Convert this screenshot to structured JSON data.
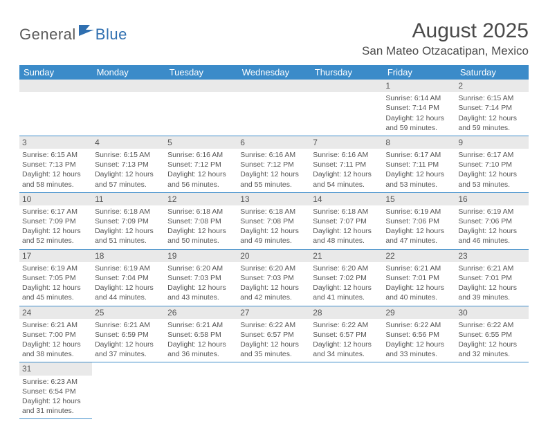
{
  "logo": {
    "part1": "General",
    "part2": "Blue"
  },
  "title": "August 2025",
  "location": "San Mateo Otzacatipan, Mexico",
  "colors": {
    "header_bg": "#3b8bc9",
    "header_text": "#ffffff",
    "daynum_bg": "#e9e9e9",
    "border": "#3b8bc9",
    "text": "#555555",
    "logo_gray": "#5a5a5a",
    "logo_blue": "#2f6fb0"
  },
  "weekdays": [
    "Sunday",
    "Monday",
    "Tuesday",
    "Wednesday",
    "Thursday",
    "Friday",
    "Saturday"
  ],
  "weeks": [
    [
      null,
      null,
      null,
      null,
      null,
      {
        "day": "1",
        "sunrise": "Sunrise: 6:14 AM",
        "sunset": "Sunset: 7:14 PM",
        "daylight1": "Daylight: 12 hours",
        "daylight2": "and 59 minutes."
      },
      {
        "day": "2",
        "sunrise": "Sunrise: 6:15 AM",
        "sunset": "Sunset: 7:14 PM",
        "daylight1": "Daylight: 12 hours",
        "daylight2": "and 59 minutes."
      }
    ],
    [
      {
        "day": "3",
        "sunrise": "Sunrise: 6:15 AM",
        "sunset": "Sunset: 7:13 PM",
        "daylight1": "Daylight: 12 hours",
        "daylight2": "and 58 minutes."
      },
      {
        "day": "4",
        "sunrise": "Sunrise: 6:15 AM",
        "sunset": "Sunset: 7:13 PM",
        "daylight1": "Daylight: 12 hours",
        "daylight2": "and 57 minutes."
      },
      {
        "day": "5",
        "sunrise": "Sunrise: 6:16 AM",
        "sunset": "Sunset: 7:12 PM",
        "daylight1": "Daylight: 12 hours",
        "daylight2": "and 56 minutes."
      },
      {
        "day": "6",
        "sunrise": "Sunrise: 6:16 AM",
        "sunset": "Sunset: 7:12 PM",
        "daylight1": "Daylight: 12 hours",
        "daylight2": "and 55 minutes."
      },
      {
        "day": "7",
        "sunrise": "Sunrise: 6:16 AM",
        "sunset": "Sunset: 7:11 PM",
        "daylight1": "Daylight: 12 hours",
        "daylight2": "and 54 minutes."
      },
      {
        "day": "8",
        "sunrise": "Sunrise: 6:17 AM",
        "sunset": "Sunset: 7:11 PM",
        "daylight1": "Daylight: 12 hours",
        "daylight2": "and 53 minutes."
      },
      {
        "day": "9",
        "sunrise": "Sunrise: 6:17 AM",
        "sunset": "Sunset: 7:10 PM",
        "daylight1": "Daylight: 12 hours",
        "daylight2": "and 53 minutes."
      }
    ],
    [
      {
        "day": "10",
        "sunrise": "Sunrise: 6:17 AM",
        "sunset": "Sunset: 7:09 PM",
        "daylight1": "Daylight: 12 hours",
        "daylight2": "and 52 minutes."
      },
      {
        "day": "11",
        "sunrise": "Sunrise: 6:18 AM",
        "sunset": "Sunset: 7:09 PM",
        "daylight1": "Daylight: 12 hours",
        "daylight2": "and 51 minutes."
      },
      {
        "day": "12",
        "sunrise": "Sunrise: 6:18 AM",
        "sunset": "Sunset: 7:08 PM",
        "daylight1": "Daylight: 12 hours",
        "daylight2": "and 50 minutes."
      },
      {
        "day": "13",
        "sunrise": "Sunrise: 6:18 AM",
        "sunset": "Sunset: 7:08 PM",
        "daylight1": "Daylight: 12 hours",
        "daylight2": "and 49 minutes."
      },
      {
        "day": "14",
        "sunrise": "Sunrise: 6:18 AM",
        "sunset": "Sunset: 7:07 PM",
        "daylight1": "Daylight: 12 hours",
        "daylight2": "and 48 minutes."
      },
      {
        "day": "15",
        "sunrise": "Sunrise: 6:19 AM",
        "sunset": "Sunset: 7:06 PM",
        "daylight1": "Daylight: 12 hours",
        "daylight2": "and 47 minutes."
      },
      {
        "day": "16",
        "sunrise": "Sunrise: 6:19 AM",
        "sunset": "Sunset: 7:06 PM",
        "daylight1": "Daylight: 12 hours",
        "daylight2": "and 46 minutes."
      }
    ],
    [
      {
        "day": "17",
        "sunrise": "Sunrise: 6:19 AM",
        "sunset": "Sunset: 7:05 PM",
        "daylight1": "Daylight: 12 hours",
        "daylight2": "and 45 minutes."
      },
      {
        "day": "18",
        "sunrise": "Sunrise: 6:19 AM",
        "sunset": "Sunset: 7:04 PM",
        "daylight1": "Daylight: 12 hours",
        "daylight2": "and 44 minutes."
      },
      {
        "day": "19",
        "sunrise": "Sunrise: 6:20 AM",
        "sunset": "Sunset: 7:03 PM",
        "daylight1": "Daylight: 12 hours",
        "daylight2": "and 43 minutes."
      },
      {
        "day": "20",
        "sunrise": "Sunrise: 6:20 AM",
        "sunset": "Sunset: 7:03 PM",
        "daylight1": "Daylight: 12 hours",
        "daylight2": "and 42 minutes."
      },
      {
        "day": "21",
        "sunrise": "Sunrise: 6:20 AM",
        "sunset": "Sunset: 7:02 PM",
        "daylight1": "Daylight: 12 hours",
        "daylight2": "and 41 minutes."
      },
      {
        "day": "22",
        "sunrise": "Sunrise: 6:21 AM",
        "sunset": "Sunset: 7:01 PM",
        "daylight1": "Daylight: 12 hours",
        "daylight2": "and 40 minutes."
      },
      {
        "day": "23",
        "sunrise": "Sunrise: 6:21 AM",
        "sunset": "Sunset: 7:01 PM",
        "daylight1": "Daylight: 12 hours",
        "daylight2": "and 39 minutes."
      }
    ],
    [
      {
        "day": "24",
        "sunrise": "Sunrise: 6:21 AM",
        "sunset": "Sunset: 7:00 PM",
        "daylight1": "Daylight: 12 hours",
        "daylight2": "and 38 minutes."
      },
      {
        "day": "25",
        "sunrise": "Sunrise: 6:21 AM",
        "sunset": "Sunset: 6:59 PM",
        "daylight1": "Daylight: 12 hours",
        "daylight2": "and 37 minutes."
      },
      {
        "day": "26",
        "sunrise": "Sunrise: 6:21 AM",
        "sunset": "Sunset: 6:58 PM",
        "daylight1": "Daylight: 12 hours",
        "daylight2": "and 36 minutes."
      },
      {
        "day": "27",
        "sunrise": "Sunrise: 6:22 AM",
        "sunset": "Sunset: 6:57 PM",
        "daylight1": "Daylight: 12 hours",
        "daylight2": "and 35 minutes."
      },
      {
        "day": "28",
        "sunrise": "Sunrise: 6:22 AM",
        "sunset": "Sunset: 6:57 PM",
        "daylight1": "Daylight: 12 hours",
        "daylight2": "and 34 minutes."
      },
      {
        "day": "29",
        "sunrise": "Sunrise: 6:22 AM",
        "sunset": "Sunset: 6:56 PM",
        "daylight1": "Daylight: 12 hours",
        "daylight2": "and 33 minutes."
      },
      {
        "day": "30",
        "sunrise": "Sunrise: 6:22 AM",
        "sunset": "Sunset: 6:55 PM",
        "daylight1": "Daylight: 12 hours",
        "daylight2": "and 32 minutes."
      }
    ],
    [
      {
        "day": "31",
        "sunrise": "Sunrise: 6:23 AM",
        "sunset": "Sunset: 6:54 PM",
        "daylight1": "Daylight: 12 hours",
        "daylight2": "and 31 minutes."
      },
      null,
      null,
      null,
      null,
      null,
      null
    ]
  ]
}
